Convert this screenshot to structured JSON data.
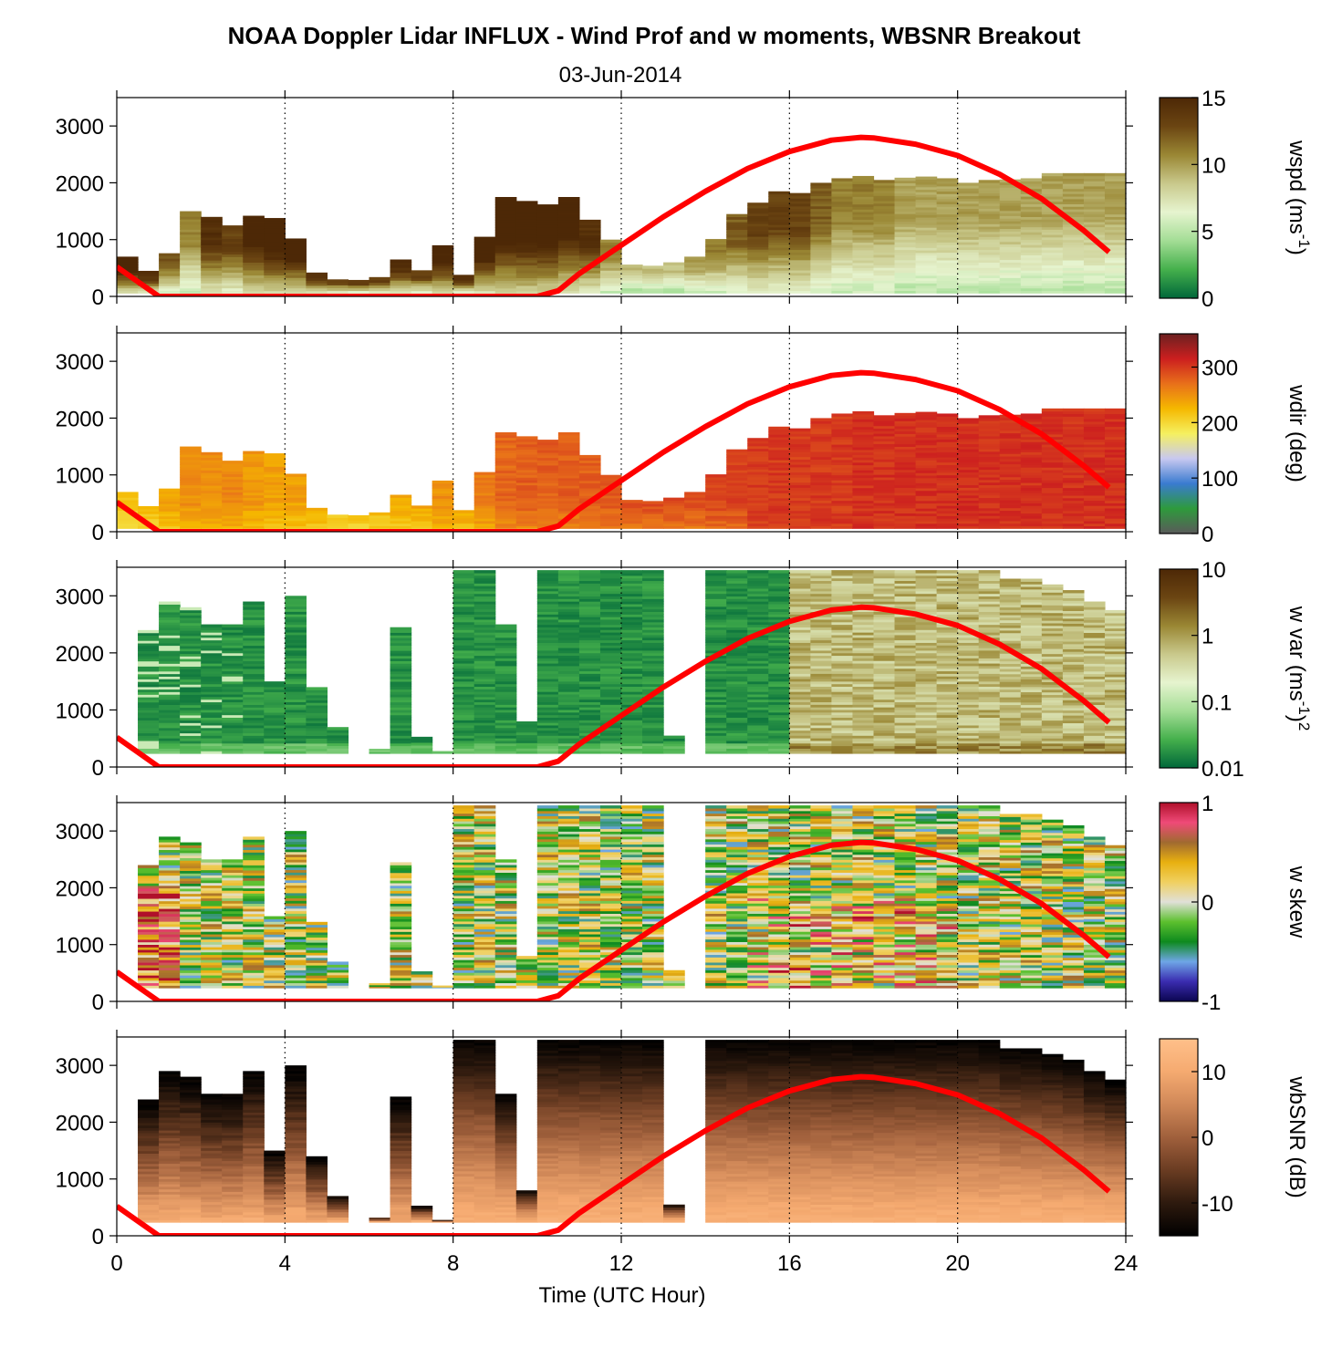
{
  "title": "NOAA Doppler Lidar INFLUX - Wind Prof and w moments, WBSNR Breakout",
  "subtitle": "03-Jun-2014",
  "xlabel": "Time (UTC Hour)",
  "colors": {
    "sun_curve": "#ff0000",
    "axis": "#000000",
    "gridline": "#000000"
  },
  "chart_data": [
    {
      "type": "heatmap",
      "variable": "wspd",
      "ylabel_main": "wspd (ms",
      "ylabel_sup": "-1",
      "ylabel_end": ")",
      "xlim": [
        0,
        24
      ],
      "ylim": [
        0,
        3500
      ],
      "xticks": [
        0,
        4,
        8,
        12,
        16,
        20,
        24
      ],
      "yticks": [
        0,
        1000,
        2000,
        3000
      ],
      "colorbar": {
        "range": [
          0,
          15
        ],
        "ticks": [
          "0",
          "5",
          "10",
          "15"
        ],
        "tick_values": [
          0,
          5,
          10,
          15
        ],
        "scale": "linear",
        "stops": [
          "#00673a",
          "#45b04c",
          "#a3dd95",
          "#e6f4cf",
          "#c9c98c",
          "#9a8734",
          "#6b4512",
          "#4d2806"
        ]
      },
      "data_top_m": [
        700,
        450,
        760,
        1500,
        1400,
        1250,
        1420,
        1380,
        1020,
        420,
        300,
        290,
        340,
        650,
        460,
        900,
        380,
        1050,
        1750,
        1680,
        1620,
        1750,
        1350,
        1000,
        560,
        540,
        600,
        700,
        1010,
        1450,
        1650,
        1850,
        1820,
        2000,
        2080,
        2120,
        2050,
        2090,
        2110,
        2080,
        2000,
        2050,
        2060,
        2080,
        2170,
        2170,
        2170,
        2170
      ],
      "data_median_value": [
        14,
        13,
        11,
        10,
        13,
        12,
        14,
        15,
        14,
        13,
        12,
        12,
        12,
        13,
        12,
        14,
        13,
        14,
        15,
        15,
        15,
        14,
        13,
        10,
        8,
        8,
        8,
        9,
        10,
        11,
        12,
        12,
        12,
        11,
        10,
        10,
        10,
        9,
        9,
        9,
        9,
        9,
        9,
        9,
        9,
        9,
        9,
        9
      ],
      "grid": "hourly dotted vertical lines at 4-h ticks"
    },
    {
      "type": "heatmap",
      "variable": "wdir",
      "ylabel_main": "wdir (deg)",
      "xlim": [
        0,
        24
      ],
      "ylim": [
        0,
        3500
      ],
      "xticks": [
        0,
        4,
        8,
        12,
        16,
        20,
        24
      ],
      "yticks": [
        0,
        1000,
        2000,
        3000
      ],
      "colorbar": {
        "range": [
          0,
          360
        ],
        "ticks": [
          "0",
          "100",
          "200",
          "300"
        ],
        "tick_values": [
          0,
          100,
          200,
          300
        ],
        "scale": "linear",
        "stops": [
          "#5a5a5a",
          "#2e9a3c",
          "#3a7bd0",
          "#c8c8f0",
          "#f5f060",
          "#f5b800",
          "#e8701a",
          "#cc1f1f",
          "#6b2020"
        ]
      },
      "data_median_value_deg": [
        215,
        225,
        240,
        250,
        250,
        255,
        245,
        240,
        240,
        235,
        225,
        225,
        230,
        235,
        240,
        250,
        245,
        260,
        275,
        280,
        280,
        280,
        280,
        285,
        290,
        290,
        290,
        290,
        295,
        295,
        300,
        300,
        300,
        300,
        300,
        305,
        305,
        305,
        305,
        305,
        305,
        305,
        305,
        305,
        305,
        305,
        305,
        305
      ]
    },
    {
      "type": "heatmap",
      "variable": "w var",
      "ylabel_main": "w var (ms",
      "ylabel_sup": "-1",
      "ylabel_end": ")",
      "ylabel_sup2": "2",
      "xlim": [
        0,
        24
      ],
      "ylim": [
        0,
        3500
      ],
      "xticks": [
        0,
        4,
        8,
        12,
        16,
        20,
        24
      ],
      "yticks": [
        0,
        1000,
        2000,
        3000
      ],
      "colorbar": {
        "range": [
          0.01,
          10
        ],
        "ticks": [
          "0.01",
          "0.1",
          "1",
          "10"
        ],
        "tick_values": [
          0.01,
          0.1,
          1,
          10
        ],
        "scale": "log",
        "stops": [
          "#00673a",
          "#45b04c",
          "#a3dd95",
          "#e6f4cf",
          "#c9c98c",
          "#9a8734",
          "#6b4512",
          "#4d2806"
        ]
      },
      "scale": "log"
    },
    {
      "type": "heatmap",
      "variable": "w skew",
      "ylabel_main": "w skew",
      "xlim": [
        0,
        24
      ],
      "ylim": [
        0,
        3500
      ],
      "xticks": [
        0,
        4,
        8,
        12,
        16,
        20,
        24
      ],
      "yticks": [
        0,
        1000,
        2000,
        3000
      ],
      "colorbar": {
        "range": [
          -1,
          1
        ],
        "ticks": [
          "-1",
          "0",
          "1"
        ],
        "tick_values": [
          -1,
          0,
          1
        ],
        "scale": "linear",
        "stops": [
          "#0b0550",
          "#3a2cb0",
          "#6ea6e6",
          "#0e8a1e",
          "#5cc02e",
          "#e0e0d8",
          "#f0d060",
          "#e8b010",
          "#a06a30",
          "#ef4a78",
          "#b0102a"
        ]
      }
    },
    {
      "type": "heatmap",
      "variable": "wbSNR",
      "ylabel_main": "wbSNR (dB)",
      "xlim": [
        0,
        24
      ],
      "ylim": [
        0,
        3500
      ],
      "xticks": [
        0,
        4,
        8,
        12,
        16,
        20,
        24
      ],
      "xticklabels": [
        "0",
        "4",
        "8",
        "12",
        "16",
        "20",
        "24"
      ],
      "yticks": [
        0,
        1000,
        2000,
        3000
      ],
      "colorbar": {
        "range": [
          -15,
          15
        ],
        "ticks": [
          "-10",
          "0",
          "10"
        ],
        "tick_values": [
          -10,
          0,
          10
        ],
        "scale": "linear",
        "stops": [
          "#000000",
          "#2e1a0e",
          "#6a3c22",
          "#a0603c",
          "#d08858",
          "#f5aa70",
          "#ffc08a"
        ]
      }
    }
  ],
  "overlay_sun_elevation_curve": {
    "note_color": "#ff0000",
    "x_hours": [
      0,
      0.5,
      1,
      1.5,
      2,
      3,
      4,
      5,
      6,
      7,
      8,
      9,
      10,
      10.5,
      11,
      12,
      13,
      14,
      15,
      16,
      17,
      17.7,
      18,
      19,
      20,
      21,
      22,
      23,
      23.6
    ],
    "y_m": [
      520,
      260,
      0,
      0,
      0,
      0,
      0,
      0,
      0,
      0,
      0,
      0,
      0,
      100,
      400,
      900,
      1400,
      1850,
      2250,
      2550,
      2750,
      2800,
      2790,
      2680,
      2480,
      2150,
      1720,
      1160,
      780
    ]
  }
}
